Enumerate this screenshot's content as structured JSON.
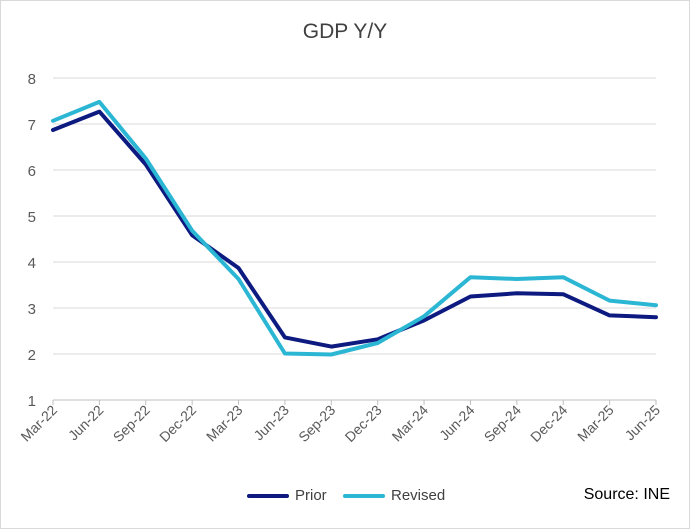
{
  "chart_data": {
    "type": "line",
    "title": "GDP Y/Y",
    "categories": [
      "Mar-22",
      "Jun-22",
      "Sep-22",
      "Dec-22",
      "Mar-23",
      "Jun-23",
      "Sep-23",
      "Dec-23",
      "Mar-24",
      "Jun-24",
      "Sep-24",
      "Dec-24",
      "Mar-25",
      "Jun-25"
    ],
    "series": [
      {
        "name": "Prior",
        "color": "#0d1a80",
        "values": [
          6.87,
          7.27,
          6.12,
          4.58,
          3.87,
          2.36,
          2.16,
          2.32,
          2.73,
          3.25,
          3.32,
          3.3,
          2.84,
          2.8
        ]
      },
      {
        "name": "Revised",
        "color": "#2bb6d4",
        "values": [
          7.07,
          7.48,
          6.25,
          4.68,
          3.63,
          2.01,
          1.99,
          2.24,
          2.82,
          3.67,
          3.63,
          3.67,
          3.16,
          3.06
        ]
      }
    ],
    "ylim": [
      1,
      8
    ],
    "yticks": [
      1,
      2,
      3,
      4,
      5,
      6,
      7,
      8
    ],
    "grid": true,
    "legend": "bottom"
  },
  "source": "Source: INE"
}
